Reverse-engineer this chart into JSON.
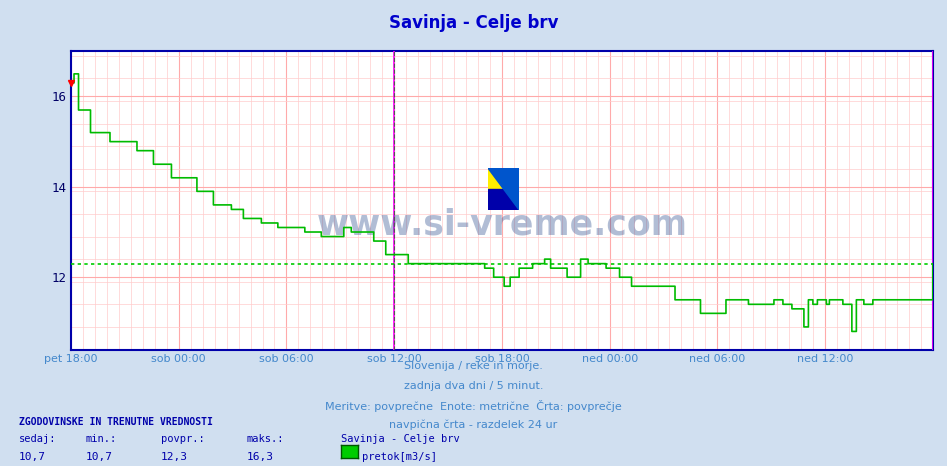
{
  "title": "Savinja - Celje brv",
  "title_color": "#0000cc",
  "bg_color": "#d0dff0",
  "plot_bg_color": "#ffffff",
  "grid_color": "#ffb0b0",
  "line_color": "#00bb00",
  "avg_line_color": "#00cc00",
  "avg_value": 12.3,
  "ylim_min": 10.4,
  "ylim_max": 17.0,
  "yticks": [
    12,
    14,
    16
  ],
  "tick_labels": [
    "pet 18:00",
    "sob 00:00",
    "sob 06:00",
    "sob 12:00",
    "sob 18:00",
    "ned 00:00",
    "ned 06:00",
    "ned 12:00"
  ],
  "footer_line1": "Slovenija / reke in morje.",
  "footer_line2": "zadnja dva dni / 5 minut.",
  "footer_line3": "Meritve: povprečne  Enote: metrične  Črta: povprečje",
  "footer_line4": "navpična črta - razdelek 24 ur",
  "stats_header": "ZGODOVINSKE IN TRENUTNE VREDNOSTI",
  "stats_labels": [
    "sedaj:",
    "min.:",
    "povpr.:",
    "maks.:"
  ],
  "stats_values": [
    "10,7",
    "10,7",
    "12,3",
    "16,3"
  ],
  "legend_station": "Savinja - Celje brv",
  "legend_label": "pretok[m3/s]",
  "legend_color": "#00cc00",
  "num_points": 576
}
